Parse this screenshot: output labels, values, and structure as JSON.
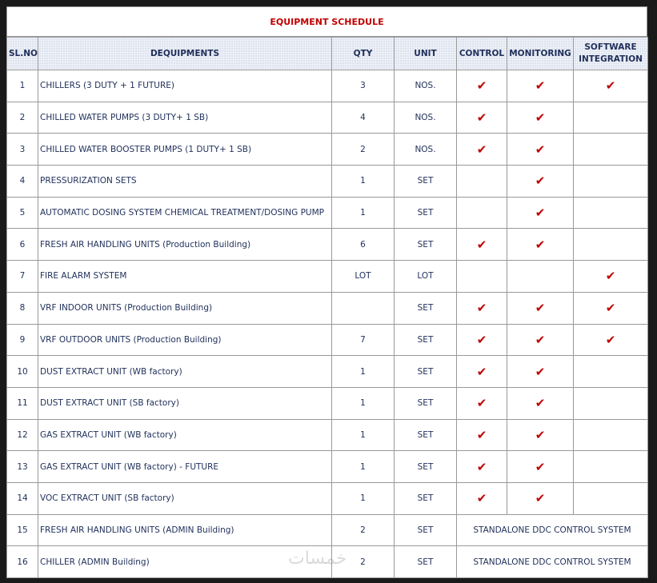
{
  "title": "EQUIPMENT SCHEDULE",
  "table": {
    "header": [
      "SL.NO",
      "DEQUIPMENTS",
      "QTY",
      "UNIT",
      "CONTROL",
      "MONITORING",
      "SOFTWARE INTEGRATION"
    ],
    "rows": [
      [
        "1",
        "CHILLERS (3 DUTY + 1 FUTURE)",
        "3",
        "NOS.",
        "✔",
        "✔",
        "✔"
      ],
      [
        "2",
        "CHILLED WATER PUMPS (3 DUTY+ 1 SB)",
        "4",
        "NOS.",
        "✔",
        "✔",
        null
      ],
      [
        "3",
        "CHILLED WATER BOOSTER PUMPS (1 DUTY+ 1 SB)",
        "2",
        "NOS.",
        "✔",
        "✔",
        null
      ],
      [
        "4",
        "PRESSURIZATION SETS",
        "1",
        "SET",
        null,
        "✔",
        null
      ],
      [
        "5",
        "AUTOMATIC DOSING SYSTEM CHEMICAL TREATMENT/DOSING PUMP",
        "1",
        "SET",
        null,
        "✔",
        null
      ],
      [
        "6",
        "FRESH AIR HANDLING UNITS (Production Building)",
        "6",
        "SET",
        "✔",
        "✔",
        null
      ],
      [
        "7",
        "FIRE ALARM SYSTEM",
        "LOT",
        "LOT",
        null,
        null,
        "✔"
      ],
      [
        "8",
        "VRF INDOOR UNITS (Production Building)",
        null,
        "SET",
        "✔",
        "✔",
        "✔"
      ],
      [
        "9",
        "VRF OUTDOOR UNITS (Production Building)",
        "7",
        "SET",
        "✔",
        "✔",
        "✔"
      ],
      [
        "10",
        "DUST EXTRACT UNIT (WB factory)",
        "1",
        "SET",
        "✔",
        "✔",
        null
      ],
      [
        "11",
        "DUST EXTRACT UNIT (SB factory)",
        "1",
        "SET",
        "✔",
        "✔",
        null
      ],
      [
        "12",
        "GAS EXTRACT UNIT (WB factory)",
        "1",
        "SET",
        "✔",
        "✔",
        null
      ],
      [
        "13",
        "GAS EXTRACT UNIT (WB factory) - FUTURE",
        "1",
        "SET",
        "✔",
        "✔",
        null
      ],
      [
        "14",
        "VOC EXTRACT UNIT (SB factory)",
        "1",
        "SET",
        "✔",
        "✔",
        null
      ],
      [
        "15",
        "FRESH AIR HANDLING UNITS (ADMIN Building)",
        "2",
        "SET",
        "STANDALONE DDC CONTROL SYSTEM"
      ],
      [
        "16",
        "CHILLER (ADMIN Building)",
        "2",
        "SET",
        "STANDALONE DDC CONTROL SYSTEM"
      ]
    ]
  },
  "watermark": "خمسات"
}
